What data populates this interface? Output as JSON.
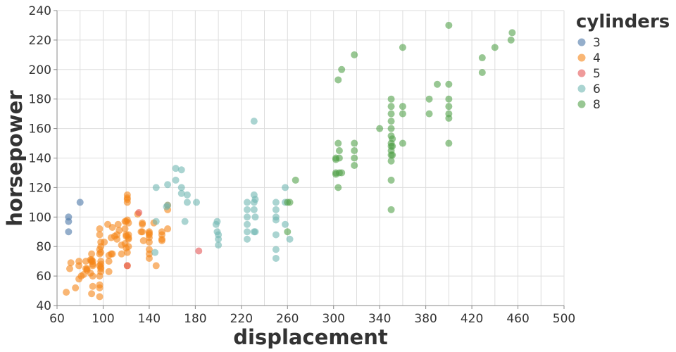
{
  "chart_data": {
    "type": "scatter",
    "xlabel": "displacement",
    "ylabel": "horsepower",
    "xlim": [
      60,
      500
    ],
    "ylim": [
      40,
      240
    ],
    "x_ticks": [
      60,
      100,
      140,
      180,
      220,
      260,
      300,
      340,
      380,
      420,
      460,
      500
    ],
    "x_tick_labels": [
      "60",
      "100",
      "140",
      "180",
      "220",
      "260",
      "300",
      "340",
      "380",
      "420",
      "460",
      "500"
    ],
    "y_ticks": [
      40,
      60,
      80,
      100,
      120,
      140,
      160,
      180,
      200,
      220,
      240
    ],
    "y_tick_labels": [
      "40",
      "60",
      "80",
      "100",
      "120",
      "140",
      "160",
      "180",
      "200",
      "220",
      "240"
    ],
    "grid": true,
    "legend": {
      "title": "cylinders",
      "placement": "right"
    },
    "series": [
      {
        "name": "3",
        "color": "#4c78a8",
        "points": [
          [
            70,
            100
          ],
          [
            70,
            97
          ],
          [
            70,
            90
          ],
          [
            80,
            110
          ]
        ]
      },
      {
        "name": "4",
        "color": "#f58518",
        "points": [
          [
            68,
            49
          ],
          [
            71,
            65
          ],
          [
            72,
            69
          ],
          [
            76,
            52
          ],
          [
            79,
            58
          ],
          [
            79,
            67
          ],
          [
            79,
            70
          ],
          [
            81,
            60
          ],
          [
            83,
            61
          ],
          [
            85,
            65
          ],
          [
            85,
            70
          ],
          [
            86,
            64
          ],
          [
            86,
            65
          ],
          [
            89,
            62
          ],
          [
            89,
            71
          ],
          [
            90,
            48
          ],
          [
            90,
            70
          ],
          [
            90,
            71
          ],
          [
            90,
            75
          ],
          [
            91,
            53
          ],
          [
            91,
            60
          ],
          [
            91,
            67
          ],
          [
            91,
            68
          ],
          [
            91,
            70
          ],
          [
            97,
            46
          ],
          [
            97,
            52
          ],
          [
            97,
            54
          ],
          [
            97,
            60
          ],
          [
            97,
            67
          ],
          [
            97,
            75
          ],
          [
            97,
            78
          ],
          [
            97,
            88
          ],
          [
            97,
            92
          ],
          [
            98,
            63
          ],
          [
            98,
            65
          ],
          [
            98,
            66
          ],
          [
            98,
            68
          ],
          [
            98,
            70
          ],
          [
            98,
            76
          ],
          [
            98,
            80
          ],
          [
            98,
            83
          ],
          [
            101,
            83
          ],
          [
            104,
            95
          ],
          [
            105,
            63
          ],
          [
            105,
            70
          ],
          [
            105,
            74
          ],
          [
            107,
            75
          ],
          [
            107,
            86
          ],
          [
            108,
            75
          ],
          [
            108,
            93
          ],
          [
            110,
            87
          ],
          [
            112,
            85
          ],
          [
            112,
            88
          ],
          [
            113,
            95
          ],
          [
            114,
            91
          ],
          [
            116,
            75
          ],
          [
            116,
            81
          ],
          [
            119,
            82
          ],
          [
            119,
            92
          ],
          [
            119,
            97
          ],
          [
            120,
            79
          ],
          [
            120,
            87
          ],
          [
            120,
            88
          ],
          [
            120,
            97
          ],
          [
            121,
            67
          ],
          [
            121,
            76
          ],
          [
            121,
            98
          ],
          [
            121,
            110
          ],
          [
            121,
            112
          ],
          [
            121,
            113
          ],
          [
            121,
            115
          ],
          [
            122,
            80
          ],
          [
            122,
            85
          ],
          [
            122,
            86
          ],
          [
            122,
            88
          ],
          [
            122,
            96
          ],
          [
            130,
            102
          ],
          [
            133,
            90
          ],
          [
            134,
            90
          ],
          [
            134,
            95
          ],
          [
            134,
            96
          ],
          [
            135,
            84
          ],
          [
            140,
            72
          ],
          [
            140,
            75
          ],
          [
            140,
            78
          ],
          [
            140,
            83
          ],
          [
            140,
            86
          ],
          [
            140,
            88
          ],
          [
            140,
            89
          ],
          [
            140,
            90
          ],
          [
            144,
            96
          ],
          [
            146,
            67
          ],
          [
            151,
            84
          ],
          [
            151,
            85
          ],
          [
            151,
            88
          ],
          [
            151,
            90
          ],
          [
            156,
            92
          ],
          [
            156,
            105
          ],
          [
            156,
            108
          ]
        ]
      },
      {
        "name": "5",
        "color": "#e45756",
        "points": [
          [
            121,
            67
          ],
          [
            131,
            103
          ],
          [
            183,
            77
          ]
        ]
      },
      {
        "name": "6",
        "color": "#72b7b2",
        "points": [
          [
            145,
            76
          ],
          [
            146,
            97
          ],
          [
            146,
            120
          ],
          [
            155,
            107
          ],
          [
            156,
            108
          ],
          [
            156,
            122
          ],
          [
            163,
            125
          ],
          [
            163,
            133
          ],
          [
            168,
            116
          ],
          [
            168,
            120
          ],
          [
            168,
            132
          ],
          [
            171,
            97
          ],
          [
            173,
            110
          ],
          [
            173,
            115
          ],
          [
            181,
            110
          ],
          [
            198,
            95
          ],
          [
            199,
            90
          ],
          [
            199,
            97
          ],
          [
            200,
            81
          ],
          [
            200,
            85
          ],
          [
            200,
            88
          ],
          [
            225,
            85
          ],
          [
            225,
            90
          ],
          [
            225,
            95
          ],
          [
            225,
            100
          ],
          [
            225,
            105
          ],
          [
            225,
            110
          ],
          [
            231,
            90
          ],
          [
            231,
            105
          ],
          [
            231,
            110
          ],
          [
            231,
            115
          ],
          [
            231,
            165
          ],
          [
            232,
            90
          ],
          [
            232,
            100
          ],
          [
            232,
            112
          ],
          [
            250,
            72
          ],
          [
            250,
            78
          ],
          [
            250,
            88
          ],
          [
            250,
            98
          ],
          [
            250,
            100
          ],
          [
            250,
            105
          ],
          [
            250,
            110
          ],
          [
            258,
            95
          ],
          [
            258,
            110
          ],
          [
            258,
            120
          ],
          [
            262,
            85
          ]
        ]
      },
      {
        "name": "8",
        "color": "#54a24b",
        "points": [
          [
            260,
            90
          ],
          [
            260,
            110
          ],
          [
            262,
            110
          ],
          [
            267,
            125
          ],
          [
            302,
            129
          ],
          [
            302,
            130
          ],
          [
            302,
            139
          ],
          [
            302,
            140
          ],
          [
            304,
            120
          ],
          [
            304,
            150
          ],
          [
            304,
            193
          ],
          [
            305,
            130
          ],
          [
            305,
            140
          ],
          [
            305,
            145
          ],
          [
            307,
            130
          ],
          [
            307,
            200
          ],
          [
            318,
            135
          ],
          [
            318,
            140
          ],
          [
            318,
            145
          ],
          [
            318,
            150
          ],
          [
            318,
            210
          ],
          [
            340,
            160
          ],
          [
            350,
            105
          ],
          [
            350,
            125
          ],
          [
            350,
            138
          ],
          [
            350,
            142
          ],
          [
            350,
            145
          ],
          [
            350,
            148
          ],
          [
            350,
            150
          ],
          [
            350,
            155
          ],
          [
            350,
            160
          ],
          [
            350,
            165
          ],
          [
            350,
            170
          ],
          [
            350,
            175
          ],
          [
            350,
            180
          ],
          [
            351,
            142
          ],
          [
            351,
            148
          ],
          [
            351,
            153
          ],
          [
            360,
            150
          ],
          [
            360,
            170
          ],
          [
            360,
            175
          ],
          [
            360,
            215
          ],
          [
            383,
            170
          ],
          [
            383,
            180
          ],
          [
            390,
            190
          ],
          [
            400,
            150
          ],
          [
            400,
            167
          ],
          [
            400,
            170
          ],
          [
            400,
            175
          ],
          [
            400,
            180
          ],
          [
            400,
            190
          ],
          [
            400,
            230
          ],
          [
            429,
            198
          ],
          [
            429,
            208
          ],
          [
            440,
            215
          ],
          [
            454,
            220
          ],
          [
            455,
            225
          ]
        ]
      }
    ]
  }
}
